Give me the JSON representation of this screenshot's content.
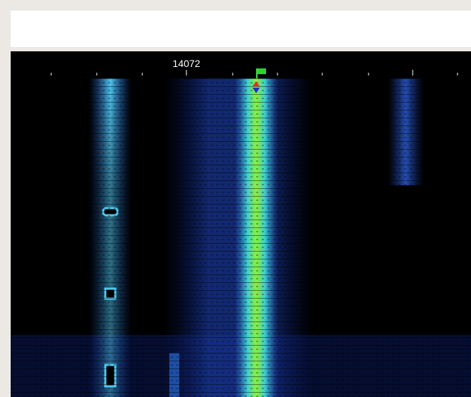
{
  "waterfall": {
    "frequency_label": "14072"
  }
}
